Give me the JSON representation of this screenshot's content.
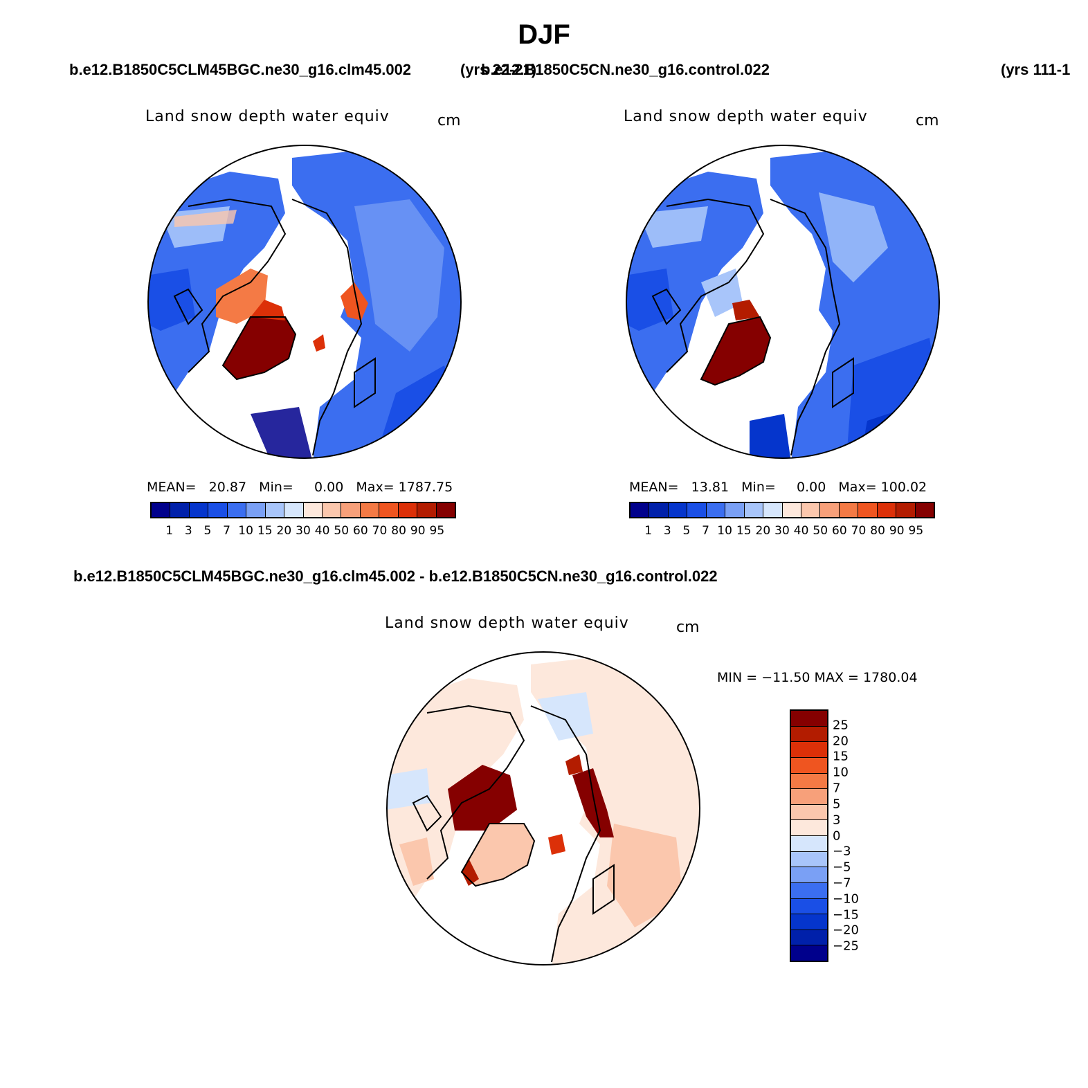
{
  "figure": {
    "title": "DJF",
    "case1_name": "b.e12.B1850C5CLM45BGC.ne30_g16.clm45.002",
    "case1_years": "(yrs 22-21)",
    "case2_name": "b.e12.B1850C5CN.ne30_g16.control.022",
    "case2_years": "(yrs 111-1",
    "diff_title": "b.e12.B1850C5CLM45BGC.ne30_g16.clm45.002 - b.e12.B1850C5CN.ne30_g16.control.022"
  },
  "panels": {
    "p1": {
      "title": "Land snow depth water equiv",
      "units": "cm",
      "stats": "MEAN=   20.87   Min=     0.00   Max= 1787.75"
    },
    "p2": {
      "title": "Land snow depth water equiv",
      "units": "cm",
      "stats": "MEAN=   13.81   Min=     0.00   Max= 100.02"
    },
    "p3": {
      "title": "Land snow depth water equiv",
      "units": "cm",
      "stats": "MIN = −11.50 MAX = 1780.04"
    }
  },
  "colorbar_abs": {
    "labels": [
      "1",
      "3",
      "5",
      "7",
      "10",
      "15",
      "20",
      "30",
      "40",
      "50",
      "60",
      "70",
      "80",
      "90",
      "95"
    ],
    "colors": [
      "#00008c",
      "#0020aa",
      "#0535cc",
      "#1a4fe6",
      "#3b6ef0",
      "#7aa0f5",
      "#a8c5fa",
      "#d6e6fc",
      "#fde8dc",
      "#fbc7ad",
      "#f7a07a",
      "#f47a45",
      "#ef5520",
      "#dc3008",
      "#b31c00",
      "#850000"
    ]
  },
  "colorbar_diff": {
    "labels": [
      "25",
      "20",
      "15",
      "10",
      "7",
      "5",
      "3",
      "0",
      "−3",
      "−5",
      "−7",
      "−10",
      "−15",
      "−20",
      "−25"
    ],
    "colors": [
      "#850000",
      "#b31c00",
      "#dc3008",
      "#ef5520",
      "#f47a45",
      "#f7a07a",
      "#fbc7ad",
      "#fde8dc",
      "#d6e6fc",
      "#a8c5fa",
      "#7aa0f5",
      "#3b6ef0",
      "#1a4fe6",
      "#0535cc",
      "#0020aa",
      "#00008c"
    ]
  },
  "colors": {
    "ocean": "#ffffff",
    "coast": "#000000",
    "deep_blue": "#1a4fe6",
    "mid_blue": "#3b6ef0",
    "light_blue": "#7aa0f5",
    "pale_blue": "#d6e6fc",
    "pale_red": "#fde8dc",
    "light_red": "#fbc7ad",
    "mid_red": "#f47a45",
    "dark_red": "#850000"
  }
}
